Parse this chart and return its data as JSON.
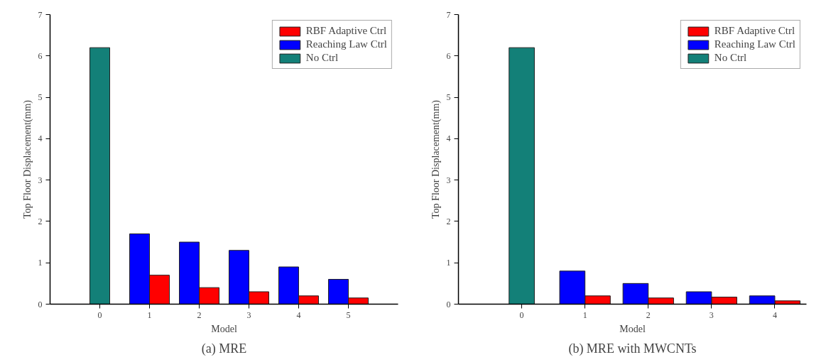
{
  "chart_data": [
    {
      "type": "bar",
      "title": "(a) MRE",
      "xlabel": "Model",
      "ylabel": "Top Floor Displacement(mm)",
      "xlim": [
        -1,
        6
      ],
      "xticks": [
        0,
        1,
        2,
        3,
        4,
        5
      ],
      "ylim": [
        0,
        7
      ],
      "yticks": [
        0,
        1,
        2,
        3,
        4,
        5,
        6,
        7
      ],
      "grid": false,
      "legend": "top right",
      "series": [
        {
          "name": "RBF Adaptive Ctrl",
          "color": "#ff0000",
          "x": [
            1,
            2,
            3,
            4,
            5
          ],
          "values": [
            0.7,
            0.4,
            0.3,
            0.2,
            0.15
          ]
        },
        {
          "name": "Reaching Law Ctrl",
          "color": "#0000ff",
          "x": [
            1,
            2,
            3,
            4,
            5
          ],
          "values": [
            1.7,
            1.5,
            1.3,
            0.9,
            0.6
          ]
        },
        {
          "name": "No Ctrl",
          "color": "#138078",
          "x": [
            0
          ],
          "values": [
            6.2
          ]
        }
      ]
    },
    {
      "type": "bar",
      "title": "(b) MRE with MWCNTs",
      "xlabel": "Model",
      "ylabel": "Top Floor Displacement(mm)",
      "xlim": [
        -1,
        4.5
      ],
      "xticks": [
        0,
        1,
        2,
        3,
        4
      ],
      "ylim": [
        0,
        7
      ],
      "yticks": [
        0,
        1,
        2,
        3,
        4,
        5,
        6,
        7
      ],
      "grid": false,
      "legend": "top right",
      "series": [
        {
          "name": "RBF Adaptive Ctrl",
          "color": "#ff0000",
          "x": [
            1,
            2,
            3,
            4
          ],
          "values": [
            0.2,
            0.15,
            0.17,
            0.08
          ]
        },
        {
          "name": "Reaching Law Ctrl",
          "color": "#0000ff",
          "x": [
            1,
            2,
            3,
            4
          ],
          "values": [
            0.8,
            0.5,
            0.3,
            0.2
          ]
        },
        {
          "name": "No Ctrl",
          "color": "#138078",
          "x": [
            0
          ],
          "values": [
            6.2
          ]
        }
      ]
    }
  ]
}
